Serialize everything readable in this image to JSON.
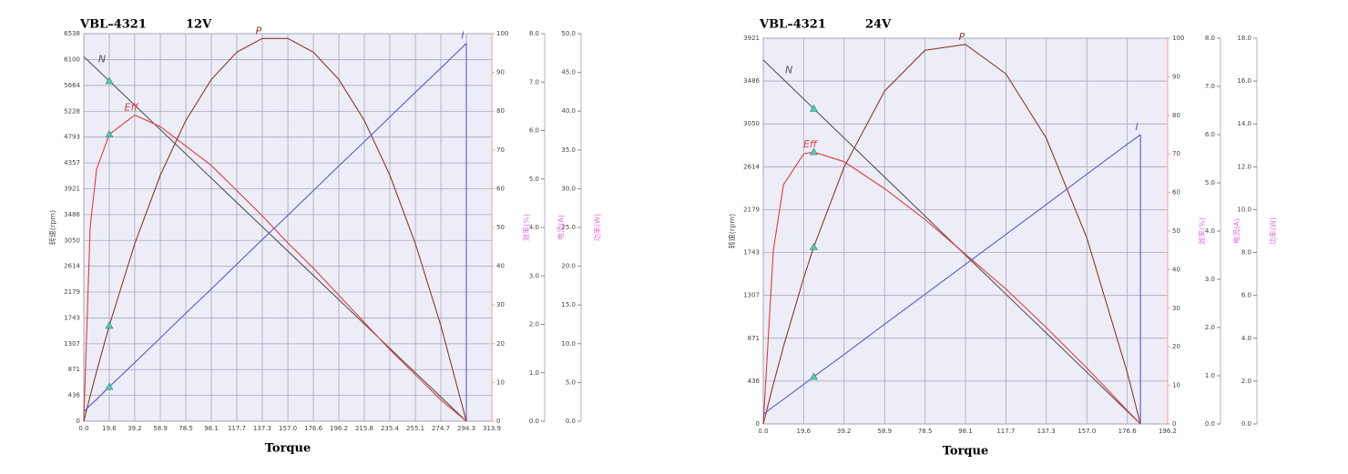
{
  "chart_data": [
    {
      "type": "line",
      "title": "VBL–4321",
      "voltage": "12V",
      "xlabel": "Torque",
      "ylabel": "转速(rpm)",
      "y2label": "效率(%)",
      "y3label": "电流(A)",
      "y4label": "功率(W)",
      "xlim": [
        0,
        313.9
      ],
      "xticks": [
        {
          "value": 0,
          "label": "0.0"
        },
        19.6,
        39.2,
        58.9,
        78.5,
        98.1,
        117.7,
        137.3,
        {
          "value": 157,
          "label": "157.0"
        },
        176.6,
        196.2,
        215.8,
        235.4,
        255.1,
        274.7,
        294.3,
        313.9
      ],
      "ylim": [
        0,
        6538
      ],
      "yticks": [
        0,
        436,
        871,
        1307,
        1743,
        2179,
        2614,
        3050,
        3486,
        3921,
        4357,
        4793,
        5228,
        5664,
        6100,
        6538
      ],
      "y2lim": [
        0,
        100
      ],
      "y2ticks": [
        0,
        10,
        20,
        30,
        40,
        50,
        60,
        70,
        80,
        90,
        100
      ],
      "y3lim": [
        0,
        8
      ],
      "y3ticks": [
        {
          "value": 0,
          "label": "0.0"
        },
        {
          "value": 1,
          "label": "1.0"
        },
        {
          "value": 2,
          "label": "2.0"
        },
        {
          "value": 3,
          "label": "3.0"
        },
        {
          "value": 4,
          "label": "4.0"
        },
        {
          "value": 5,
          "label": "5.0"
        },
        {
          "value": 6,
          "label": "6.0"
        },
        {
          "value": 7,
          "label": "7.0"
        },
        {
          "value": 8,
          "label": "8.0"
        }
      ],
      "y4lim": [
        0,
        50
      ],
      "y4ticks": [
        {
          "value": 0,
          "label": "0.0"
        },
        {
          "value": 5,
          "label": "5.0"
        },
        {
          "value": 10,
          "label": "10.0"
        },
        {
          "value": 15,
          "label": "15.0"
        },
        {
          "value": 20,
          "label": "20.0"
        },
        {
          "value": 25,
          "label": "25.0"
        },
        {
          "value": 30,
          "label": "30.0"
        },
        {
          "value": 35,
          "label": "35.0"
        },
        {
          "value": 40,
          "label": "40.0"
        },
        {
          "value": 45,
          "label": "45.0"
        },
        {
          "value": 50,
          "label": "50.0"
        }
      ],
      "grid": true,
      "marker_x": 19.6,
      "x": [
        0,
        4.9,
        9.8,
        19.6,
        39.2,
        58.9,
        78.5,
        98.1,
        117.7,
        137.3,
        157.0,
        176.6,
        196.2,
        215.8,
        235.4,
        255.1,
        274.7,
        294.3
      ],
      "series": [
        {
          "name": "N",
          "color": "#555555",
          "axis": "y",
          "values": [
            6150,
            6048,
            5945,
            5740,
            5331,
            4919,
            4510,
            4100,
            3690,
            3281,
            2869,
            2460,
            2050,
            1640,
            1231,
            819,
            410,
            0
          ]
        },
        {
          "name": "Eff",
          "color": "#e33b3b",
          "axis": "y2",
          "values": [
            0,
            50,
            65,
            74,
            79,
            76,
            71,
            66,
            59.5,
            53,
            46,
            39.5,
            32.5,
            25.5,
            18.5,
            12,
            5.5,
            0
          ]
        },
        {
          "name": "P",
          "color": "#8b3a2a",
          "axis": "y4",
          "values": [
            0,
            3.25,
            6.39,
            12.33,
            22.9,
            31.76,
            38.8,
            44.09,
            47.61,
            49.38,
            49.38,
            47.61,
            44.09,
            38.8,
            31.76,
            22.9,
            12.33,
            0
          ]
        },
        {
          "name": "I",
          "color": "#5a5acc",
          "axis": "y3",
          "values": [
            0.2,
            0.33,
            0.45,
            0.71,
            1.21,
            1.72,
            2.23,
            2.73,
            3.24,
            3.75,
            4.25,
            4.76,
            5.27,
            5.77,
            6.28,
            6.79,
            7.29,
            7.8
          ]
        }
      ]
    },
    {
      "type": "line",
      "title": "VBL–4321",
      "voltage": "24V",
      "xlabel": "Torque",
      "ylabel": "转速(rpm)",
      "y2label": "效率(%)",
      "y3label": "电流(A)",
      "y4label": "功率(W)",
      "xlim": [
        0,
        196.2
      ],
      "xticks": [
        {
          "value": 0,
          "label": "0.0"
        },
        19.6,
        39.2,
        58.9,
        78.5,
        98.1,
        117.7,
        137.3,
        {
          "value": 157,
          "label": "157.0"
        },
        176.6,
        196.2
      ],
      "ylim": [
        0,
        3921
      ],
      "yticks": [
        0,
        436,
        871,
        1307,
        1743,
        2179,
        2614,
        3050,
        3486,
        3921
      ],
      "y2lim": [
        0,
        100
      ],
      "y2ticks": [
        0,
        10,
        20,
        30,
        40,
        50,
        60,
        70,
        80,
        90,
        100
      ],
      "y3lim": [
        0,
        8
      ],
      "y3ticks": [
        {
          "value": 0,
          "label": "0.0"
        },
        {
          "value": 1,
          "label": "1.0"
        },
        {
          "value": 2,
          "label": "2.0"
        },
        {
          "value": 3,
          "label": "3.0"
        },
        {
          "value": 4,
          "label": "4.0"
        },
        {
          "value": 5,
          "label": "5.0"
        },
        {
          "value": 6,
          "label": "6.0"
        },
        {
          "value": 7,
          "label": "7.0"
        },
        {
          "value": 8,
          "label": "8.0"
        }
      ],
      "y4lim": [
        0,
        18
      ],
      "y4ticks": [
        {
          "value": 0,
          "label": "0.0"
        },
        {
          "value": 2,
          "label": "2.0"
        },
        {
          "value": 4,
          "label": "4.0"
        },
        {
          "value": 6,
          "label": "6.0"
        },
        {
          "value": 8,
          "label": "8.0"
        },
        {
          "value": 10,
          "label": "10.0"
        },
        {
          "value": 12,
          "label": "12.0"
        },
        {
          "value": 14,
          "label": "14.0"
        },
        {
          "value": 16,
          "label": "16.0"
        },
        {
          "value": 18,
          "label": "18.0"
        }
      ],
      "grid": true,
      "marker_x": 24.5,
      "x": [
        0,
        4.9,
        9.8,
        19.6,
        24.5,
        39.2,
        58.9,
        78.5,
        98.1,
        117.7,
        137.3,
        157.0,
        176.6,
        183.0
      ],
      "series": [
        {
          "name": "N",
          "color": "#555555",
          "axis": "y",
          "values": [
            3700,
            3601,
            3502,
            3304,
            3205,
            2907,
            2509,
            2113,
            1716,
            1320,
            924,
            526,
            129,
            0
          ]
        },
        {
          "name": "Eff",
          "color": "#e33b3b",
          "axis": "y2",
          "values": [
            0,
            45,
            62,
            70,
            70.5,
            68,
            61,
            53,
            44,
            35,
            25,
            14.5,
            3.5,
            0
          ]
        },
        {
          "name": "P",
          "color": "#8b3a2a",
          "axis": "y4",
          "values": [
            0,
            1.86,
            3.61,
            6.81,
            8.26,
            11.98,
            15.54,
            17.44,
            17.71,
            16.34,
            13.34,
            8.68,
            2.4,
            0
          ]
        },
        {
          "name": "I",
          "color": "#5a5acc",
          "axis": "y3",
          "values": [
            0.2,
            0.36,
            0.51,
            0.82,
            0.98,
            1.44,
            2.07,
            2.69,
            3.31,
            3.93,
            4.55,
            5.18,
            5.8,
            6.0
          ]
        }
      ]
    }
  ]
}
